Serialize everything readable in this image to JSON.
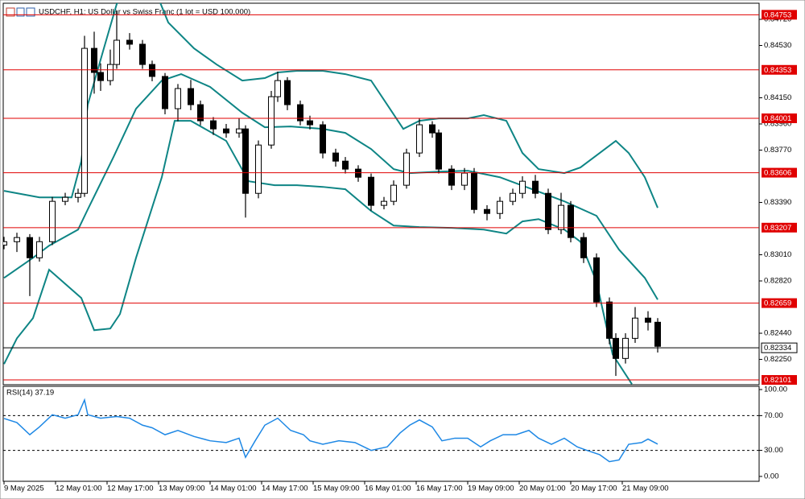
{
  "chart_data": [
    {
      "type": "candlestick",
      "title": "USDCHF, H1:  US Dollar vs Swiss Franc (1 lot = USD 100,000)",
      "x": [
        0,
        4,
        8,
        11,
        15,
        19,
        23,
        25,
        28,
        30,
        33,
        35,
        39,
        43,
        46,
        50,
        54,
        58,
        61,
        65,
        69,
        73,
        75,
        79,
        83,
        85,
        88,
        92,
        95,
        99,
        103,
        106,
        110,
        114,
        118,
        121,
        125,
        129,
        133,
        135,
        139,
        143,
        146,
        150,
        154,
        158,
        161,
        165,
        169,
        173,
        176,
        180,
        184,
        188,
        190,
        193,
        196,
        200,
        203
      ],
      "open": [
        0.8308,
        0.83105,
        0.83135,
        0.82988,
        0.83105,
        0.83398,
        0.83427,
        0.83456,
        0.84509,
        0.84334,
        0.84275,
        0.84392,
        0.84568,
        0.84539,
        0.84392,
        0.84305,
        0.84071,
        0.84217,
        0.841,
        0.83983,
        0.83924,
        0.83895,
        0.83924,
        0.83456,
        0.83807,
        0.84158,
        0.84275,
        0.841,
        0.83983,
        0.83954,
        0.83749,
        0.8369,
        0.83632,
        0.83573,
        0.83369,
        0.83398,
        0.83515,
        0.83749,
        0.83954,
        0.83895,
        0.83632,
        0.83515,
        0.83603,
        0.83339,
        0.8331,
        0.83398,
        0.83456,
        0.83544,
        0.83456,
        0.83193,
        0.83369,
        0.83135,
        0.82988,
        0.82667,
        0.82403,
        0.82257,
        0.82403,
        0.8255,
        0.8252
      ],
      "high": [
        0.8314,
        0.8317,
        0.8316,
        0.8314,
        0.8343,
        0.8346,
        0.8349,
        0.846,
        0.8463,
        0.844,
        0.845,
        0.8478,
        0.8462,
        0.8457,
        0.8442,
        0.8433,
        0.8425,
        0.8428,
        0.8413,
        0.8401,
        0.8396,
        0.84,
        0.8395,
        0.8384,
        0.842,
        0.8434,
        0.843,
        0.8413,
        0.8402,
        0.8398,
        0.8378,
        0.8372,
        0.8366,
        0.836,
        0.8343,
        0.8355,
        0.8378,
        0.84,
        0.8398,
        0.8392,
        0.8366,
        0.8364,
        0.8364,
        0.8337,
        0.8343,
        0.8349,
        0.8358,
        0.8359,
        0.8349,
        0.8346,
        0.834,
        0.8317,
        0.8302,
        0.827,
        0.8244,
        0.8244,
        0.8263,
        0.826,
        0.8255
      ],
      "low": [
        0.8305,
        0.8303,
        0.8271,
        0.8296,
        0.8308,
        0.8337,
        0.8339,
        0.8343,
        0.8418,
        0.842,
        0.8424,
        0.8436,
        0.845,
        0.8436,
        0.8427,
        0.8403,
        0.8398,
        0.8406,
        0.8395,
        0.8388,
        0.8386,
        0.8386,
        0.8328,
        0.8342,
        0.8378,
        0.8412,
        0.8406,
        0.8395,
        0.8392,
        0.8371,
        0.8365,
        0.836,
        0.8354,
        0.8333,
        0.8334,
        0.8337,
        0.8349,
        0.8372,
        0.8386,
        0.836,
        0.8348,
        0.8348,
        0.8331,
        0.8326,
        0.8327,
        0.8337,
        0.8342,
        0.8342,
        0.8316,
        0.8316,
        0.831,
        0.8295,
        0.8263,
        0.8236,
        0.8213,
        0.8222,
        0.8237,
        0.8246,
        0.823
      ],
      "close": [
        0.83105,
        0.83135,
        0.82988,
        0.83105,
        0.83398,
        0.83427,
        0.83456,
        0.84509,
        0.84334,
        0.84275,
        0.84392,
        0.84568,
        0.84539,
        0.84392,
        0.84305,
        0.84071,
        0.84217,
        0.841,
        0.83983,
        0.83924,
        0.83895,
        0.83924,
        0.83456,
        0.83807,
        0.84158,
        0.84275,
        0.841,
        0.83983,
        0.83954,
        0.83749,
        0.8369,
        0.83632,
        0.83573,
        0.83369,
        0.83398,
        0.83515,
        0.83749,
        0.83954,
        0.83895,
        0.83632,
        0.83515,
        0.83603,
        0.83339,
        0.8331,
        0.83398,
        0.83456,
        0.83544,
        0.83456,
        0.83193,
        0.83369,
        0.83135,
        0.82988,
        0.82667,
        0.82403,
        0.82257,
        0.82403,
        0.8255,
        0.8252,
        0.82345
      ],
      "color": "#000000",
      "up_color": "#ffffff",
      "down_color": "#000000",
      "bands": [
        {
          "x": [
            0,
            11,
            21,
            24,
            26,
            31,
            35,
            44,
            51,
            59,
            66,
            74,
            81,
            85,
            91,
            99,
            106,
            114,
            119,
            124,
            129,
            135,
            144,
            149,
            156,
            161,
            166,
            174,
            179,
            185,
            190,
            194,
            199,
            203
          ],
          "values": [
            0.83474,
            0.83427,
            0.83427,
            0.8369,
            0.841,
            0.84509,
            0.84831,
            0.851,
            0.84697,
            0.84509,
            0.84392,
            0.84275,
            0.84293,
            0.84334,
            0.84346,
            0.84346,
            0.84322,
            0.84275,
            0.841,
            0.83924,
            0.83983,
            0.84,
            0.84,
            0.84024,
            0.83983,
            0.83749,
            0.83632,
            0.83603,
            0.83644,
            0.83749,
            0.83837,
            0.83749,
            0.83573,
            0.83351
          ]
        },
        {
          "x": [
            0,
            9,
            14,
            23,
            26,
            34,
            41,
            49,
            55,
            64,
            74,
            81,
            89,
            99,
            106,
            114,
            121,
            126,
            135,
            144,
            154,
            164,
            174,
            184,
            191,
            199,
            203
          ],
          "values": [
            0.82842,
            0.82988,
            0.83076,
            0.83193,
            0.83339,
            0.8372,
            0.84071,
            0.84275,
            0.84322,
            0.84229,
            0.84041,
            0.83936,
            0.83942,
            0.83924,
            0.83895,
            0.83778,
            0.83632,
            0.83603,
            0.83614,
            0.8362,
            0.83573,
            0.83486,
            0.83398,
            0.83293,
            0.83047,
            0.82842,
            0.82684
          ]
        },
        {
          "x": [
            0,
            4,
            9,
            14,
            24,
            28,
            33,
            36,
            41,
            49,
            53,
            58,
            69,
            76,
            84,
            91,
            99,
            106,
            114,
            121,
            129,
            139,
            149,
            156,
            161,
            166,
            174,
            179,
            184,
            189,
            195
          ],
          "values": [
            0.82216,
            0.82403,
            0.8255,
            0.82901,
            0.82696,
            0.82462,
            0.82474,
            0.82579,
            0.82988,
            0.83573,
            0.83983,
            0.83983,
            0.83837,
            0.83544,
            0.83515,
            0.83515,
            0.83503,
            0.83486,
            0.83328,
            0.83222,
            0.83211,
            0.83205,
            0.83193,
            0.83164,
            0.83252,
            0.83269,
            0.83193,
            0.83105,
            0.82813,
            0.82286,
            0.8207
          ]
        }
      ],
      "band_color": "#0e8585",
      "levels": [
        {
          "value": 0.84753,
          "label": "0.84753"
        },
        {
          "value": 0.84353,
          "label": "0.84353"
        },
        {
          "value": 0.84001,
          "label": "0.84001"
        },
        {
          "value": 0.83606,
          "label": "0.83606"
        },
        {
          "value": 0.83207,
          "label": "0.83207"
        },
        {
          "value": 0.82659,
          "label": "0.82659"
        },
        {
          "value": 0.82101,
          "label": "0.82101"
        }
      ],
      "level_color": "#e00000",
      "price_line": {
        "value": 0.82334,
        "label": "0.82334"
      },
      "xlim": [
        0,
        234
      ],
      "ylim": [
        0.82072,
        0.84831
      ],
      "yticks": [
        {
          "value": 0.8472,
          "label": "0.84720"
        },
        {
          "value": 0.8453,
          "label": "0.84530"
        },
        {
          "value": 0.8415,
          "label": "0.84150"
        },
        {
          "value": 0.8396,
          "label": "0.83960"
        },
        {
          "value": 0.8377,
          "label": "0.83770"
        },
        {
          "value": 0.8339,
          "label": "0.83390"
        },
        {
          "value": 0.8301,
          "label": "0.83010"
        },
        {
          "value": 0.8282,
          "label": "0.82820"
        },
        {
          "value": 0.8244,
          "label": "0.82440"
        },
        {
          "value": 0.8225,
          "label": "0.82250"
        }
      ]
    },
    {
      "type": "line",
      "title": "RSI(14) 37.19",
      "x": [
        0,
        4,
        8,
        11,
        15,
        19,
        23,
        25,
        26,
        30,
        35,
        39,
        43,
        46,
        50,
        54,
        59,
        64,
        69,
        73,
        75,
        78,
        81,
        85,
        89,
        93,
        95,
        99,
        104,
        109,
        114,
        119,
        123,
        126,
        129,
        133,
        136,
        140,
        144,
        148,
        151,
        155,
        159,
        163,
        166,
        170,
        174,
        178,
        181,
        185,
        188,
        191,
        194,
        198,
        200,
        203
      ],
      "values": [
        66.7,
        62,
        48,
        57,
        71,
        67,
        71,
        88,
        71,
        67,
        69,
        67,
        59,
        56,
        48,
        53,
        46,
        41,
        39,
        44,
        22,
        41,
        59,
        67,
        53,
        48,
        41,
        37,
        41,
        39,
        30,
        34,
        50,
        59,
        65,
        57,
        41,
        44,
        44,
        34,
        41,
        48,
        48,
        53,
        44,
        37,
        44,
        34,
        30,
        25,
        17,
        19,
        37,
        39,
        43,
        37.19
      ],
      "color": "#1e88e5",
      "levels": [
        70,
        30
      ],
      "xlim": [
        0,
        234
      ],
      "ylim": [
        -5.6,
        103.7
      ],
      "yticks": [
        {
          "value": 100,
          "label": "100.00"
        },
        {
          "value": 70,
          "label": "70.00"
        },
        {
          "value": 30,
          "label": "30.00"
        },
        {
          "value": 0,
          "label": "0.00"
        }
      ],
      "xticks": [
        {
          "value": 0,
          "label": "9 May 2025"
        },
        {
          "value": 16,
          "label": "12 May 01:00"
        },
        {
          "value": 32,
          "label": "12 May 17:00"
        },
        {
          "value": 48,
          "label": "13 May 09:00"
        },
        {
          "value": 64,
          "label": "14 May 01:00"
        },
        {
          "value": 80,
          "label": "14 May 17:00"
        },
        {
          "value": 96,
          "label": "15 May 09:00"
        },
        {
          "value": 112,
          "label": "16 May 01:00"
        },
        {
          "value": 128,
          "label": "16 May 17:00"
        },
        {
          "value": 144,
          "label": "19 May 09:00"
        },
        {
          "value": 160,
          "label": "20 May 01:00"
        },
        {
          "value": 176,
          "label": "20 May 17:00"
        },
        {
          "value": 192,
          "label": "21 May 09:00"
        }
      ]
    }
  ]
}
